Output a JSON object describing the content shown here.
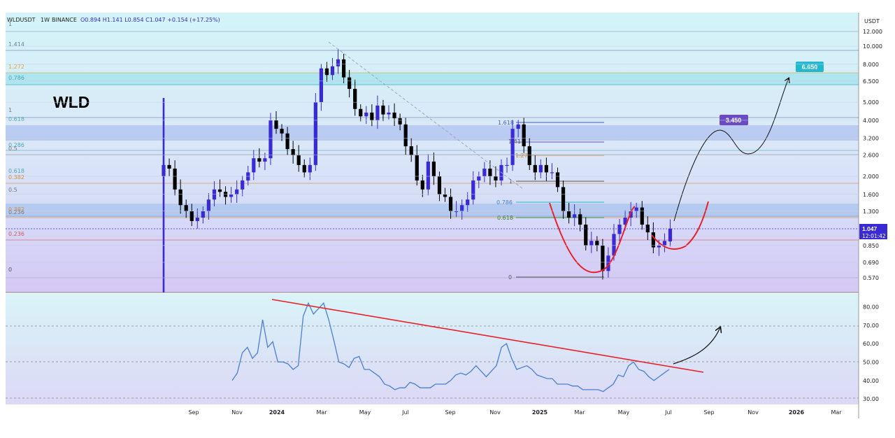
{
  "header": {
    "symbol": "WLDUSDT",
    "interval": "1W",
    "exchange": "BINANCE",
    "ohlc_text": "O0.894  H1.141  L0.854  C1.047  +0.154 (+17.25%)",
    "currency": "USDT"
  },
  "ticker_label": "WLD",
  "last_price": "1.047",
  "countdown": "12:01:42",
  "targets": [
    "3.450",
    "6.650"
  ],
  "colors": {
    "up": "#3a2ad6",
    "down": "#000000",
    "rsi_line": "#4a7fd4",
    "trendline": "#e8202a",
    "target_3450": "#6a4bc4",
    "target_6650": "#22b8cf",
    "price_badge": "#3a2ad6"
  },
  "fib_left_labels": [
    "1",
    "1.414",
    "1.272",
    "0.786",
    "1",
    "0.618",
    "0.286",
    "0.5",
    "0.618",
    "0.382",
    "0.5",
    "0.382",
    "0.236",
    "0.236",
    "0"
  ],
  "fib_right_labels": [
    "1.618",
    "1.41",
    "1.27",
    "1",
    "0.786",
    "0.618",
    "0"
  ],
  "chart_data": [
    {
      "type": "candlestick",
      "title": "WLDUSDT · 1W · BINANCE",
      "y_scale": "log",
      "y_ticks": [
        "12.000",
        "10.000",
        "8.000",
        "6.500",
        "5.000",
        "4.000",
        "3.200",
        "2.600",
        "2.000",
        "1.600",
        "1.300",
        "1.047",
        "0.850",
        "0.690",
        "0.570"
      ],
      "x_ticks": [
        "Sep",
        "Nov",
        "2024",
        "Mar",
        "May",
        "Jul",
        "Sep",
        "Nov",
        "2025",
        "Mar",
        "May",
        "Jul",
        "Sep",
        "Nov",
        "2026",
        "Mar"
      ],
      "last_candle": {
        "open": 0.894,
        "high": 1.141,
        "low": 0.854,
        "close": 1.047,
        "change": 0.154,
        "change_pct": 17.25
      },
      "closes": [
        2.3,
        2.2,
        1.7,
        1.4,
        1.3,
        1.15,
        1.2,
        1.3,
        1.5,
        1.7,
        1.65,
        1.55,
        1.6,
        1.7,
        1.9,
        2.1,
        2.5,
        2.4,
        2.5,
        4.0,
        3.6,
        3.4,
        2.8,
        2.6,
        2.3,
        2.1,
        2.3,
        5.0,
        7.6,
        7.0,
        7.8,
        8.5,
        6.8,
        5.9,
        4.6,
        4.2,
        4.4,
        4.0,
        4.8,
        4.3,
        4.4,
        4.1,
        3.8,
        2.9,
        2.6,
        1.9,
        1.7,
        2.4,
        2.0,
        1.6,
        1.55,
        1.3,
        1.3,
        1.4,
        1.5,
        1.9,
        2.0,
        2.2,
        2.0,
        1.9,
        2.3,
        2.3,
        3.6,
        3.8,
        2.9,
        2.3,
        2.1,
        2.3,
        2.1,
        2.1,
        1.75,
        1.3,
        1.2,
        1.25,
        1.1,
        0.85,
        0.9,
        0.85,
        0.62,
        0.75,
        0.98,
        1.1,
        1.2,
        1.3,
        1.36,
        1.1,
        1.0,
        0.83,
        0.85,
        0.9,
        1.047
      ]
    },
    {
      "type": "line",
      "title": "RSI",
      "y_ticks": [
        "80.00",
        "70.00",
        "60.00",
        "50.00",
        "40.00",
        "30.00"
      ],
      "ylim": [
        27,
        87
      ],
      "reference_lines": [
        70,
        50,
        30
      ],
      "values": [
        40,
        44,
        55,
        58,
        52,
        55,
        73,
        58,
        61,
        50,
        50,
        49,
        46,
        48,
        75,
        82,
        76,
        79,
        82,
        73,
        62,
        50,
        49,
        47,
        52,
        53,
        46,
        46,
        44,
        42,
        38,
        37,
        35,
        36,
        36,
        39,
        38,
        36,
        36,
        36,
        38,
        38,
        38,
        40,
        43,
        44,
        43,
        45,
        48,
        45,
        42,
        45,
        48,
        58,
        60,
        52,
        46,
        47,
        48,
        46,
        43,
        42,
        41,
        41,
        38,
        38,
        38,
        37,
        37,
        35,
        35,
        35,
        35,
        34,
        36,
        38,
        43,
        42,
        48,
        50,
        46,
        45,
        42,
        40,
        42,
        44,
        46
      ]
    }
  ]
}
